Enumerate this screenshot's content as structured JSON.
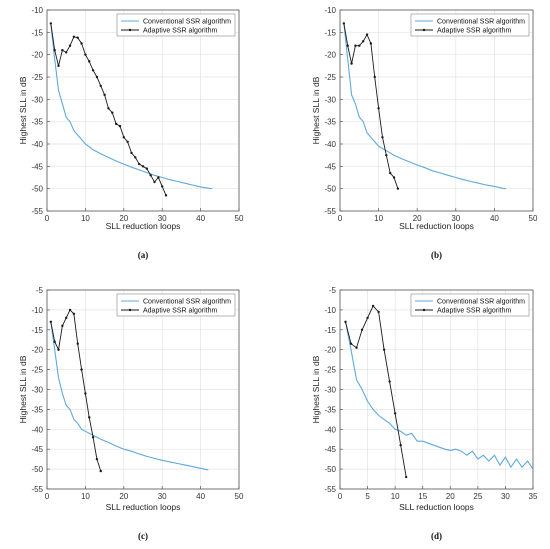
{
  "colors": {
    "conventional": "#5ea9dd",
    "adaptive": "#1a1a1a",
    "grid": "#e3e3e3",
    "axis": "#555555"
  },
  "chart_data": [
    {
      "type": "line",
      "caption": "(a)",
      "xlabel": "SLL reduction loops",
      "ylabel": "Highest SLL in dB",
      "xlim": [
        0,
        50
      ],
      "ylim": [
        -55,
        -10
      ],
      "xticks": [
        "0",
        "10",
        "20",
        "30",
        "40",
        "50"
      ],
      "yticks": [
        "-55",
        "-50",
        "-45",
        "-40",
        "-35",
        "-30",
        "-25",
        "-20",
        "-15",
        "-10"
      ],
      "grid": true,
      "legend": "top-right",
      "series": [
        {
          "name": "Conventional SSR algorithm",
          "x": [
            1,
            2,
            3,
            4,
            5,
            6,
            7,
            8,
            9,
            10,
            12,
            14,
            16,
            18,
            20,
            22,
            24,
            26,
            28,
            30,
            32,
            34,
            36,
            38,
            40,
            42,
            43
          ],
          "y": [
            -13,
            -21,
            -28,
            -31,
            -34,
            -35,
            -37,
            -38,
            -39,
            -40,
            -41.3,
            -42.2,
            -43,
            -43.8,
            -44.5,
            -45.2,
            -45.8,
            -46.4,
            -47,
            -47.5,
            -48,
            -48.4,
            -48.8,
            -49.2,
            -49.6,
            -49.9,
            -50
          ]
        },
        {
          "name": "Adaptive SSR algorithm",
          "x": [
            1,
            2,
            3,
            4,
            5,
            6,
            7,
            8,
            9,
            10,
            11,
            12,
            13,
            14,
            15,
            16,
            17,
            18,
            19,
            20,
            21,
            22,
            23,
            24,
            25,
            26,
            27,
            28,
            29,
            30,
            31
          ],
          "y": [
            -13,
            -19,
            -22.5,
            -19,
            -19.5,
            -18,
            -16,
            -16.2,
            -17.5,
            -20,
            -21.5,
            -23.5,
            -25,
            -27,
            -29,
            -32,
            -33,
            -35.5,
            -36,
            -38.5,
            -39.5,
            -42,
            -43,
            -44.5,
            -45,
            -45.5,
            -47,
            -48.5,
            -47.5,
            -49.5,
            -51.5
          ]
        }
      ]
    },
    {
      "type": "line",
      "caption": "(b)",
      "xlabel": "SLL reduction loops",
      "ylabel": "Highest SLL in dB",
      "xlim": [
        0,
        50
      ],
      "ylim": [
        -55,
        -10
      ],
      "xticks": [
        "0",
        "10",
        "20",
        "30",
        "40",
        "50"
      ],
      "yticks": [
        "-55",
        "-50",
        "-45",
        "-40",
        "-35",
        "-30",
        "-25",
        "-20",
        "-15",
        "-10"
      ],
      "grid": true,
      "legend": "top-right",
      "series": [
        {
          "name": "Conventional SSR algorithm",
          "x": [
            1,
            2,
            3,
            4,
            5,
            6,
            7,
            8,
            9,
            10,
            12,
            14,
            16,
            18,
            20,
            22,
            24,
            26,
            28,
            30,
            32,
            34,
            36,
            38,
            40,
            42,
            43
          ],
          "y": [
            -13,
            -21,
            -29,
            -31,
            -34,
            -35,
            -37.5,
            -38.5,
            -39.5,
            -40.5,
            -41.5,
            -42.5,
            -43.3,
            -44,
            -44.7,
            -45.3,
            -46,
            -46.5,
            -47,
            -47.5,
            -48,
            -48.4,
            -48.8,
            -49.2,
            -49.5,
            -49.9,
            -50
          ]
        },
        {
          "name": "Adaptive SSR algorithm",
          "x": [
            1,
            2,
            3,
            4,
            5,
            6,
            7,
            8,
            9,
            10,
            11,
            12,
            13,
            14,
            15
          ],
          "y": [
            -13,
            -18,
            -22,
            -18,
            -18,
            -17,
            -15.5,
            -17.5,
            -25,
            -32,
            -38.5,
            -42.5,
            -46.5,
            -47.5,
            -50
          ]
        }
      ]
    },
    {
      "type": "line",
      "caption": "(c)",
      "xlabel": "SLL reduction loops",
      "ylabel": "Highest SLL in dB",
      "xlim": [
        0,
        50
      ],
      "ylim": [
        -55,
        -5
      ],
      "xticks": [
        "0",
        "10",
        "20",
        "30",
        "40",
        "50"
      ],
      "yticks": [
        "-55",
        "-50",
        "-45",
        "-40",
        "-35",
        "-30",
        "-25",
        "-20",
        "-15",
        "-10",
        "-5"
      ],
      "grid": true,
      "legend": "top-right",
      "series": [
        {
          "name": "Conventional SSR algorithm",
          "x": [
            1,
            2,
            3,
            4,
            5,
            6,
            7,
            8,
            9,
            10,
            12,
            14,
            16,
            18,
            20,
            22,
            24,
            26,
            28,
            30,
            32,
            34,
            36,
            38,
            40,
            42
          ],
          "y": [
            -13,
            -20,
            -27,
            -31,
            -34,
            -35,
            -37.5,
            -38.5,
            -40,
            -40.5,
            -41.5,
            -42.5,
            -43.3,
            -44.2,
            -45,
            -45.5,
            -46.2,
            -46.8,
            -47.3,
            -47.8,
            -48.2,
            -48.6,
            -49,
            -49.4,
            -49.8,
            -50.2
          ]
        },
        {
          "name": "Adaptive SSR algorithm",
          "x": [
            1,
            2,
            3,
            4,
            5,
            6,
            7,
            8,
            9,
            10,
            11,
            12,
            13,
            14
          ],
          "y": [
            -13,
            -18,
            -20,
            -14,
            -12,
            -10,
            -11,
            -18.5,
            -25,
            -31,
            -37,
            -42,
            -47.5,
            -50.5
          ]
        }
      ]
    },
    {
      "type": "line",
      "caption": "(d)",
      "xlabel": "SLL reduction loops",
      "ylabel": "Highest SLL in dB",
      "xlim": [
        0,
        35
      ],
      "ylim": [
        -55,
        -5
      ],
      "xticks": [
        "0",
        "5",
        "10",
        "15",
        "20",
        "25",
        "30",
        "35"
      ],
      "yticks": [
        "-55",
        "-50",
        "-45",
        "-40",
        "-35",
        "-30",
        "-25",
        "-20",
        "-15",
        "-10",
        "-5"
      ],
      "grid": true,
      "legend": "top-right",
      "series": [
        {
          "name": "Conventional SSR algorithm",
          "x": [
            1,
            2,
            3,
            4,
            5,
            6,
            7,
            8,
            9,
            10,
            11,
            12,
            13,
            14,
            15,
            16,
            17,
            18,
            19,
            20,
            21,
            22,
            23,
            24,
            25,
            26,
            27,
            28,
            29,
            30,
            31,
            32,
            33,
            34,
            35
          ],
          "y": [
            -13,
            -20,
            -27.5,
            -30,
            -33,
            -35,
            -36.5,
            -37.5,
            -38.5,
            -40,
            -40.5,
            -41.5,
            -41,
            -43,
            -43,
            -43.5,
            -44,
            -44.5,
            -45,
            -45.3,
            -45,
            -45.5,
            -46.5,
            -45.5,
            -47.5,
            -46.5,
            -48,
            -46.5,
            -49,
            -47,
            -49.5,
            -47.5,
            -49.5,
            -48,
            -50
          ]
        },
        {
          "name": "Adaptive SSR algorithm",
          "x": [
            1,
            2,
            3,
            4,
            5,
            6,
            7,
            8,
            9,
            10,
            11,
            12
          ],
          "y": [
            -13,
            -18.5,
            -19.5,
            -15,
            -12,
            -9,
            -10.5,
            -20,
            -28,
            -36,
            -44,
            -52
          ]
        }
      ]
    }
  ]
}
